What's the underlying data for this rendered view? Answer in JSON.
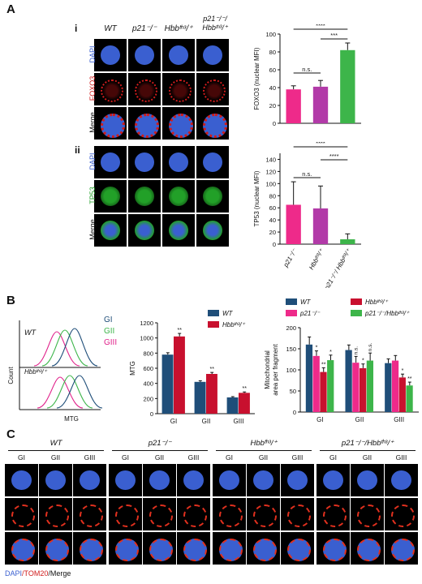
{
  "panelA": {
    "letter": "A",
    "sub_i": "i",
    "sub_ii": "ii",
    "col_headers": [
      "WT",
      "p21⁻/⁻",
      "Hbbᵗʰ³/⁺",
      "p21⁻/⁻/ Hbbᵗʰ³/⁺"
    ],
    "rows_i": [
      "DAPI",
      "FOXO3",
      "Merge"
    ],
    "rows_ii": [
      "DAPI",
      "TP53",
      "Merge"
    ],
    "colors": {
      "dapi": "#3a5fd0",
      "foxo3": "#d01c1c",
      "tp53": "#22a028",
      "pink": "#ee2a8a",
      "purple": "#b23aa8",
      "green": "#3db54a"
    }
  },
  "panelB": {
    "letter": "B",
    "flow": {
      "legend": [
        "GI",
        "GII",
        "GIII"
      ],
      "legend_colors": [
        "#1f4e79",
        "#3db54a",
        "#e0208a"
      ],
      "top_label": "WT",
      "bottom_label": "Hbbᵗʰ³/⁺",
      "ylabel": "Count",
      "xlabel": "MTG"
    }
  },
  "panelC": {
    "letter": "C",
    "groups": [
      "WT",
      "p21⁻/⁻",
      "Hbbᵗʰ³/⁺",
      "p21⁻/⁻/Hbbᵗʰ³/⁺"
    ],
    "cols": [
      "GI",
      "GII",
      "GIII"
    ],
    "footer_dapi": "DAPI",
    "footer_tom20": "/TOM20",
    "footer_merge": "/Merge"
  },
  "chart_data": [
    {
      "type": "bar",
      "categories": [
        "WT",
        "p21⁻/⁻",
        "Hbbᵗʰ³/⁺",
        "p21⁻/⁻/ Hbbᵗʰ³/⁺"
      ],
      "values": [
        38,
        41,
        82,
        null
      ],
      "errors": [
        4,
        7,
        8,
        null
      ],
      "colors": [
        "#ee2a8a",
        "#b23aa8",
        "#3db54a"
      ],
      "bars_shown": [
        "#ee2a8a",
        "#b23aa8",
        "#3db54a"
      ],
      "ylabel": "FOXO3 (nuclear MFI)",
      "ylim": [
        0,
        100
      ],
      "yticks": [
        0,
        20,
        40,
        60,
        80,
        100
      ],
      "annotations": [
        {
          "text": "****",
          "from": 0,
          "to": 2
        },
        {
          "text": "***",
          "from": 1,
          "to": 2
        },
        {
          "text": "n.s.",
          "from": 0,
          "to": 1
        }
      ]
    },
    {
      "type": "bar",
      "categories": [
        "p21⁻/⁻",
        "Hbbᵗʰ³/⁺",
        "p21⁻/⁻/ Hbbᵗʰ³/⁺"
      ],
      "values": [
        65,
        59,
        8
      ],
      "errors": [
        38,
        37,
        9
      ],
      "colors": [
        "#ee2a8a",
        "#b23aa8",
        "#3db54a"
      ],
      "ylabel": "TP53 (nuclear MFI)",
      "ylim": [
        0,
        150
      ],
      "yticks": [
        0,
        20,
        40,
        60,
        80,
        100,
        120,
        140
      ],
      "annotations": [
        {
          "text": "****",
          "from": 0,
          "to": 2
        },
        {
          "text": "****",
          "from": 1,
          "to": 2
        },
        {
          "text": "n.s.",
          "from": 0,
          "to": 1
        }
      ]
    },
    {
      "type": "bar",
      "categories": [
        "GI",
        "GII",
        "GIII"
      ],
      "series": [
        {
          "name": "WT",
          "color": "#1f4e79",
          "values": [
            780,
            420,
            215
          ],
          "errors": [
            25,
            15,
            10
          ]
        },
        {
          "name": "Hbbᵗʰ³/⁺",
          "color": "#c8102e",
          "values": [
            1020,
            525,
            275
          ],
          "errors": [
            40,
            20,
            12
          ]
        }
      ],
      "ylabel": "MTG",
      "ylim": [
        0,
        1200
      ],
      "yticks": [
        0,
        200,
        400,
        600,
        800,
        1000,
        1200
      ],
      "significance": [
        "**",
        "**",
        "**"
      ]
    },
    {
      "type": "bar",
      "categories": [
        "GI",
        "GII",
        "GIII"
      ],
      "series": [
        {
          "name": "WT",
          "color": "#1f4e79",
          "values": [
            160,
            147,
            116
          ],
          "errors": [
            18,
            12,
            10
          ]
        },
        {
          "name": "p21⁻/⁻",
          "color": "#ee2a8a",
          "values": [
            133,
            117,
            122
          ],
          "errors": [
            12,
            15,
            12
          ]
        },
        {
          "name": "Hbbᵗʰ³/⁺",
          "color": "#c8102e",
          "values": [
            95,
            104,
            82
          ],
          "errors": [
            10,
            10,
            8
          ]
        },
        {
          "name": "p21⁻/⁻/Hbbᵗʰ³/⁺",
          "color": "#3db54a",
          "values": [
            123,
            122,
            63
          ],
          "errors": [
            12,
            18,
            8
          ]
        }
      ],
      "ylabel": "Mitochondrial area per fragment",
      "ylim": [
        0,
        200
      ],
      "yticks": [
        0,
        50,
        100,
        150,
        200
      ],
      "annotations": [
        {
          "group": 0,
          "bar": 1,
          "text": "*"
        },
        {
          "group": 0,
          "bar": 2,
          "text": "**"
        },
        {
          "group": 0,
          "bar": 3,
          "text": "*"
        },
        {
          "group": 1,
          "bar": 1,
          "text": "n.s."
        },
        {
          "group": 1,
          "bar": 2,
          "text": "*"
        },
        {
          "group": 1,
          "bar": 3,
          "text": "n.s."
        },
        {
          "group": 2,
          "bar": 2,
          "text": "*"
        },
        {
          "group": 2,
          "bar": 3,
          "text": "**"
        }
      ]
    }
  ]
}
